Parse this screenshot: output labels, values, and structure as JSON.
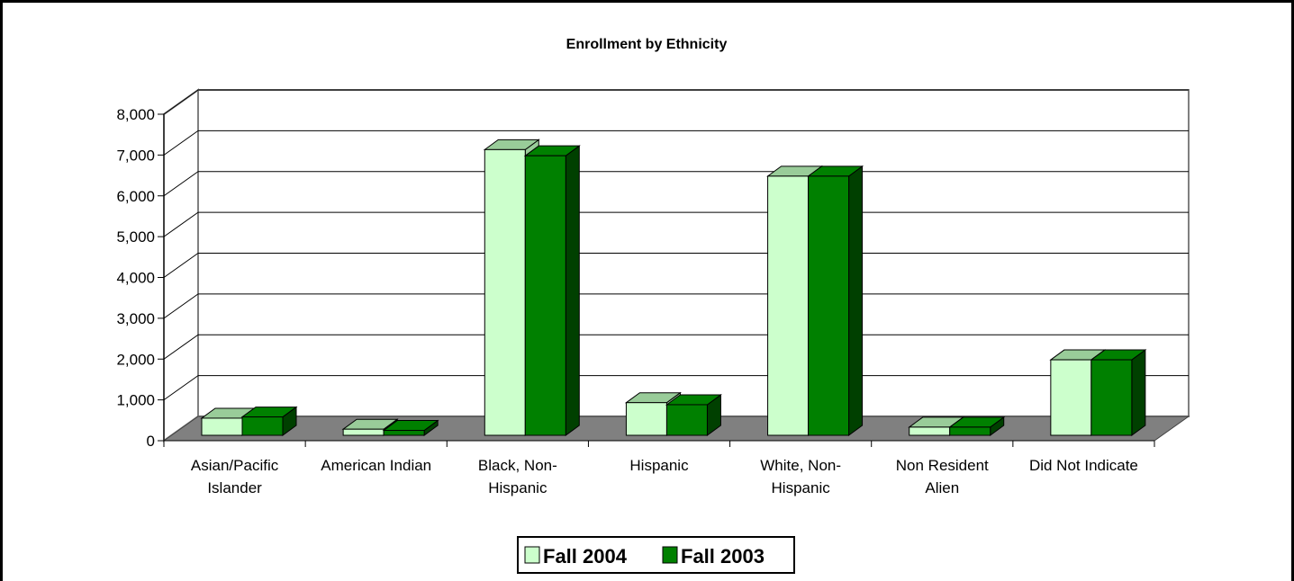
{
  "chart_data": {
    "type": "bar",
    "title": "Enrollment by Ethnicity",
    "categories": [
      [
        "Asian/Pacific",
        "Islander"
      ],
      [
        "American Indian"
      ],
      [
        "Black, Non-",
        "Hispanic"
      ],
      [
        "Hispanic"
      ],
      [
        "White, Non-",
        "Hispanic"
      ],
      [
        "Non Resident",
        "Alien"
      ],
      [
        "Did Not Indicate"
      ]
    ],
    "series": [
      {
        "name": "Fall 2004",
        "values": [
          420,
          150,
          7000,
          800,
          6350,
          200,
          1850
        ]
      },
      {
        "name": "Fall 2003",
        "values": [
          450,
          120,
          6850,
          750,
          6350,
          200,
          1850
        ]
      }
    ],
    "ylim": [
      0,
      8000
    ],
    "yticks": [
      "0",
      "1,000",
      "2,000",
      "3,000",
      "4,000",
      "5,000",
      "6,000",
      "7,000",
      "8,000"
    ],
    "grid": true,
    "legend_position": "bottom",
    "colors": {
      "fall2004_face": "#ccffcc",
      "fall2004_side": "#99cc99",
      "fall2003_face": "#008000",
      "fall2003_side": "#004000",
      "floor": "#808080"
    }
  }
}
